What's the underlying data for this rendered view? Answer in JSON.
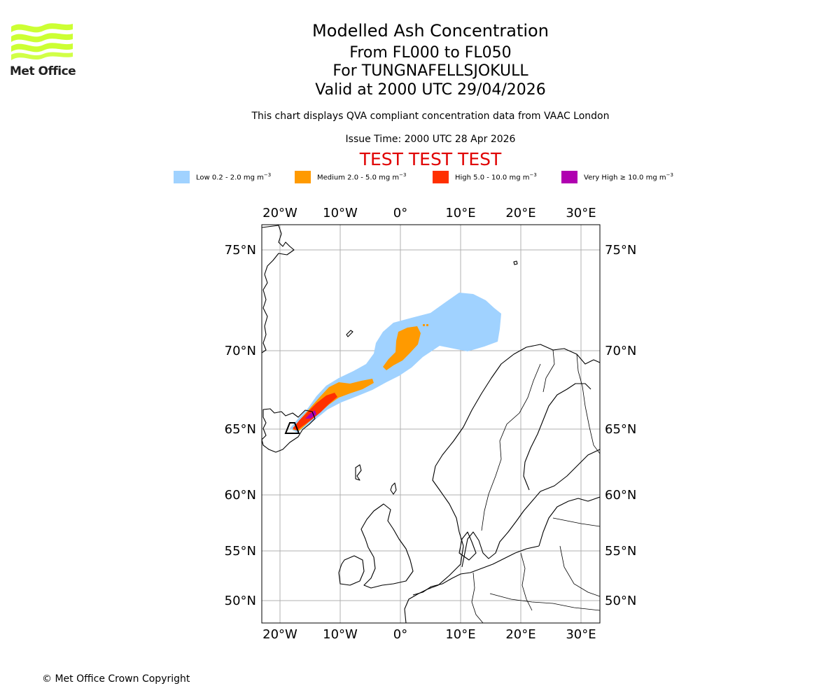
{
  "header": {
    "title": "Modelled Ash Concentration",
    "subtitle_levels": "From FL000 to FL050",
    "subtitle_volcano": "For TUNGNAFELLSJOKULL",
    "subtitle_valid": "Valid at 2000 UTC 29/04/2026",
    "description": "This chart displays QVA compliant concentration data from VAAC London",
    "issue_time": "Issue Time: 2000 UTC 28 Apr 2026",
    "test_banner": "TEST TEST TEST"
  },
  "logo": {
    "text": "Met Office",
    "icon": "met-office-wave-logo",
    "color": "#ccff33"
  },
  "legend": [
    {
      "label": "Low 0.2 - 2.0 mg m",
      "unit_exp": "−3",
      "color": "#a0d2ff"
    },
    {
      "label": "Medium 2.0 - 5.0 mg m",
      "unit_exp": "−3",
      "color": "#ff9a00"
    },
    {
      "label": "High 5.0 - 10.0 mg m",
      "unit_exp": "−3",
      "color": "#ff3000"
    },
    {
      "label": "Very High  ≥  10.0 mg m",
      "unit_exp": "−3",
      "color": "#b000b0"
    }
  ],
  "map": {
    "lon_ticks": [
      "20°W",
      "10°W",
      "0°",
      "10°E",
      "20°E",
      "30°E"
    ],
    "lon_values": [
      -20,
      -10,
      0,
      10,
      20,
      30
    ],
    "lat_ticks": [
      "75°N",
      "70°N",
      "65°N",
      "60°N",
      "55°N",
      "50°N"
    ],
    "lat_values": [
      75,
      70,
      65,
      60,
      55,
      50
    ],
    "volcano_marker": {
      "lon": -17.5,
      "lat": 64.8
    }
  },
  "footer": {
    "copyright": "© Met Office Crown Copyright"
  }
}
